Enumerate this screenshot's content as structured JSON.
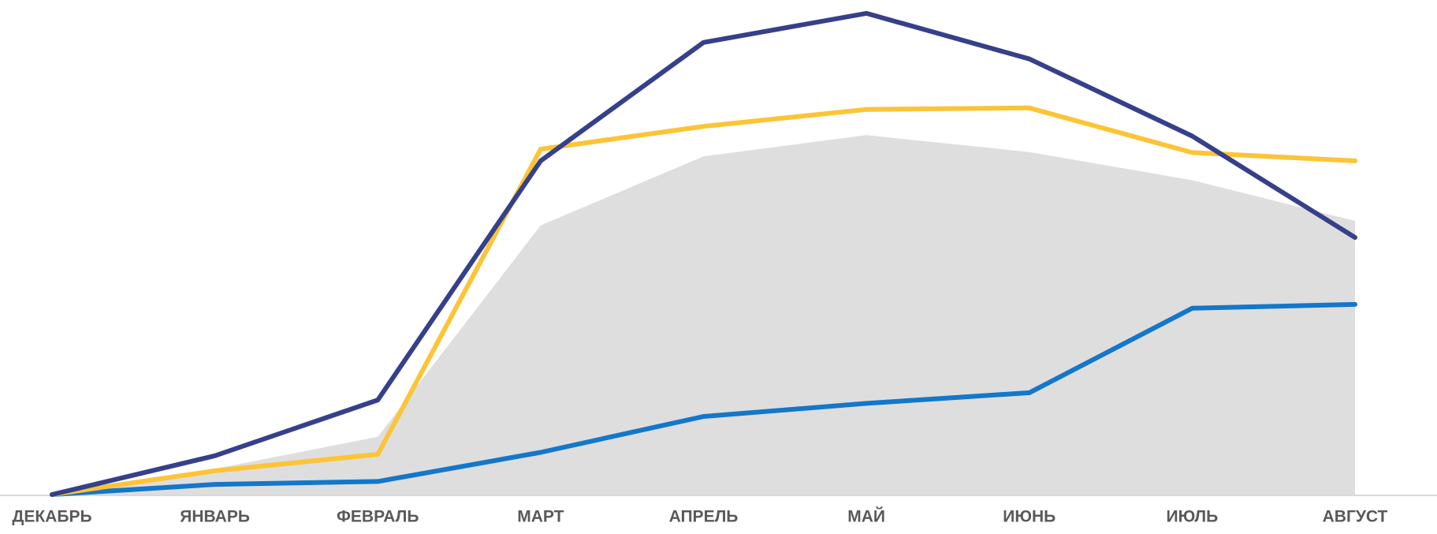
{
  "chart_data": {
    "type": "line",
    "categories": [
      "ДЕКАБРЬ",
      "ЯНВАРЬ",
      "ФЕВРАЛЬ",
      "МАРТ",
      "АПРЕЛЬ",
      "МАЙ",
      "ИЮНЬ",
      "ИЮЛЬ",
      "АВГУСТ"
    ],
    "ylim": [
      0,
      100
    ],
    "series": [
      {
        "kind": "area",
        "color": "#dedede",
        "values": [
          0,
          5.3,
          11.9,
          55.5,
          69.7,
          74.1,
          70.6,
          64.8,
          56.4
        ]
      },
      {
        "kind": "line",
        "color": "#1477c9",
        "values": [
          0,
          2.1,
          2.7,
          8.7,
          16.1,
          18.8,
          21,
          38.4,
          39.2
        ]
      },
      {
        "kind": "line",
        "color": "#fcc436",
        "values": [
          0,
          4.9,
          8.3,
          71.2,
          75.9,
          79.4,
          79.7,
          70.5,
          68.8
        ]
      },
      {
        "kind": "line",
        "color": "#36408a",
        "values": [
          0,
          8,
          19.5,
          68.8,
          93.2,
          99.2,
          89.8,
          73.9,
          53
        ]
      }
    ]
  }
}
